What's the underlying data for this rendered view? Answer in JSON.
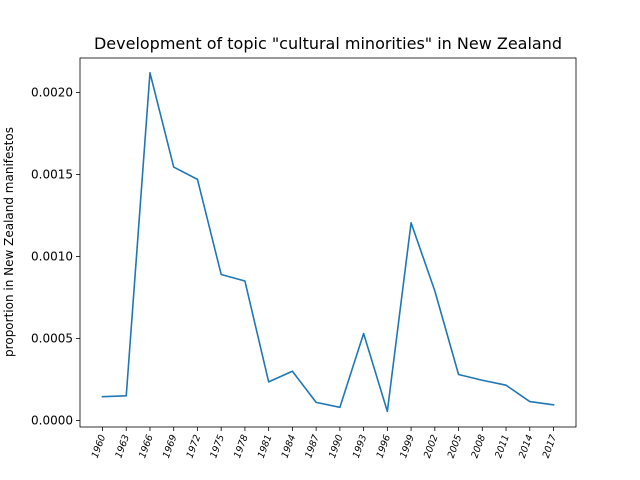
{
  "chart_data": {
    "type": "line",
    "title": "Development of topic \"cultural minorities\" in New Zealand",
    "xlabel": "",
    "ylabel": "proportion in New Zealand manifestos",
    "categories": [
      "1960",
      "1963",
      "1966",
      "1969",
      "1972",
      "1975",
      "1978",
      "1981",
      "1984",
      "1987",
      "1990",
      "1993",
      "1996",
      "1999",
      "2002",
      "2005",
      "2008",
      "2011",
      "2014",
      "2017"
    ],
    "series": [
      {
        "values": [
          0.000145,
          0.00015,
          0.00212,
          0.001545,
          0.00147,
          0.00089,
          0.00085,
          0.000235,
          0.0003,
          0.00011,
          8e-05,
          0.00053,
          5.5e-05,
          0.001205,
          0.00079,
          0.00028,
          0.000245,
          0.000215,
          0.000115,
          9.5e-05
        ]
      }
    ],
    "yticks": [
      "0.0000",
      "0.0005",
      "0.0010",
      "0.0015",
      "0.0020"
    ],
    "ytick_values": [
      0,
      0.0005,
      0.001,
      0.0015,
      0.002
    ],
    "ylim": [
      -4e-05,
      0.00221
    ],
    "grid": false,
    "line_color": "#1f77b4"
  }
}
